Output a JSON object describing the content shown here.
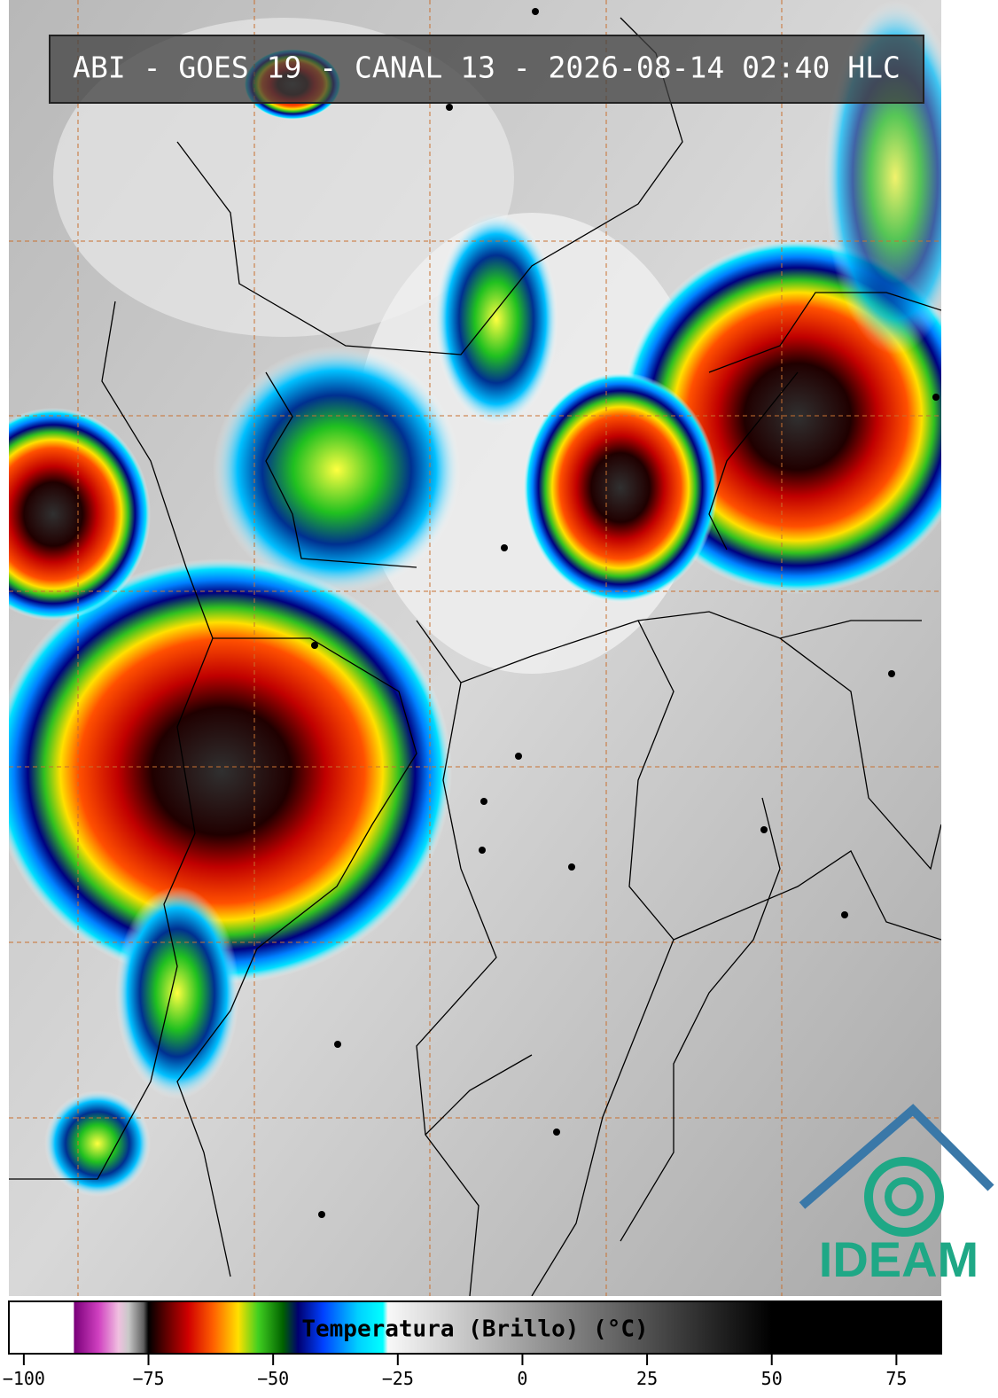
{
  "title": "ABI - GOES 19 - CANAL 13 - 2026-08-14 02:40 HLC",
  "logo": "IDEAM",
  "colorbar": {
    "label": "Temperatura (Brillo) (°C)",
    "lim": [
      -103,
      84
    ],
    "ticks": [
      {
        "value": -100,
        "label": "−100"
      },
      {
        "value": -75,
        "label": "−75"
      },
      {
        "value": -50,
        "label": "−50"
      },
      {
        "value": -25,
        "label": "−25"
      },
      0,
      25,
      50,
      75
    ],
    "stops": [
      [
        -103,
        "#ffffff"
      ],
      [
        -90,
        "#ffffff"
      ],
      [
        -89.9,
        "#7a007a"
      ],
      [
        -85,
        "#d040c0"
      ],
      [
        -81,
        "#f0c0e0"
      ],
      [
        -79,
        "#c8c8c8"
      ],
      [
        -76,
        "#606060"
      ],
      [
        -75,
        "#000000"
      ],
      [
        -72,
        "#500000"
      ],
      [
        -67,
        "#d00000"
      ],
      [
        -62,
        "#ff6000"
      ],
      [
        -57,
        "#ffe000"
      ],
      [
        -53,
        "#40d020"
      ],
      [
        -48,
        "#006000"
      ],
      [
        -45,
        "#000070"
      ],
      [
        -40,
        "#0040ff"
      ],
      [
        -33,
        "#00d0ff"
      ],
      [
        -28,
        "#00ffff"
      ],
      [
        -27,
        "#f8f8f8"
      ],
      [
        50,
        "#000000"
      ],
      [
        84,
        "#000000"
      ]
    ]
  }
}
